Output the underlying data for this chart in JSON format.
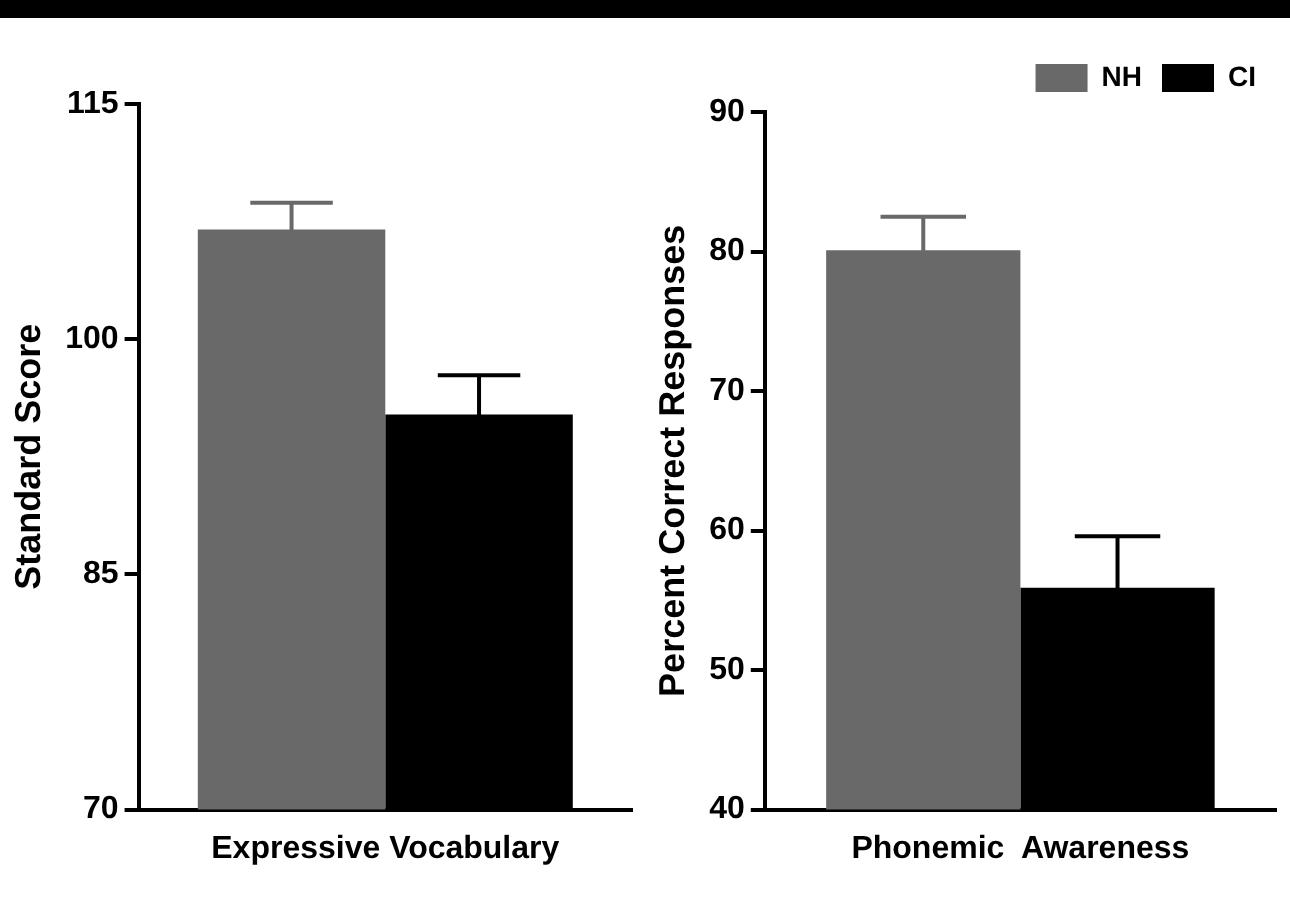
{
  "chart_data": [
    {
      "type": "bar",
      "categories": [
        "Expressive Vocabulary"
      ],
      "ylabel": "Standard Score",
      "ylim": [
        70,
        115
      ],
      "yticks": [
        70,
        85,
        100,
        115
      ],
      "legend": false,
      "grid": false,
      "series": [
        {
          "color": "#696969",
          "values": [
            107.0
          ],
          "errors": [
            1.7
          ]
        },
        {
          "color": "#000000",
          "values": [
            95.2
          ],
          "errors": [
            2.5
          ]
        }
      ]
    },
    {
      "type": "bar",
      "categories": [
        "Phonemic  Awareness"
      ],
      "ylabel": "Percent Correct Responses",
      "ylim": [
        40,
        90
      ],
      "yticks": [
        40,
        50,
        60,
        70,
        80,
        90
      ],
      "legend": "top right",
      "grid": false,
      "series": [
        {
          "name": "NH",
          "color": "#696969",
          "values": [
            80.1
          ],
          "errors": [
            2.4
          ]
        },
        {
          "name": "CI",
          "color": "#000000",
          "values": [
            55.9
          ],
          "errors": [
            3.7
          ]
        }
      ]
    }
  ]
}
